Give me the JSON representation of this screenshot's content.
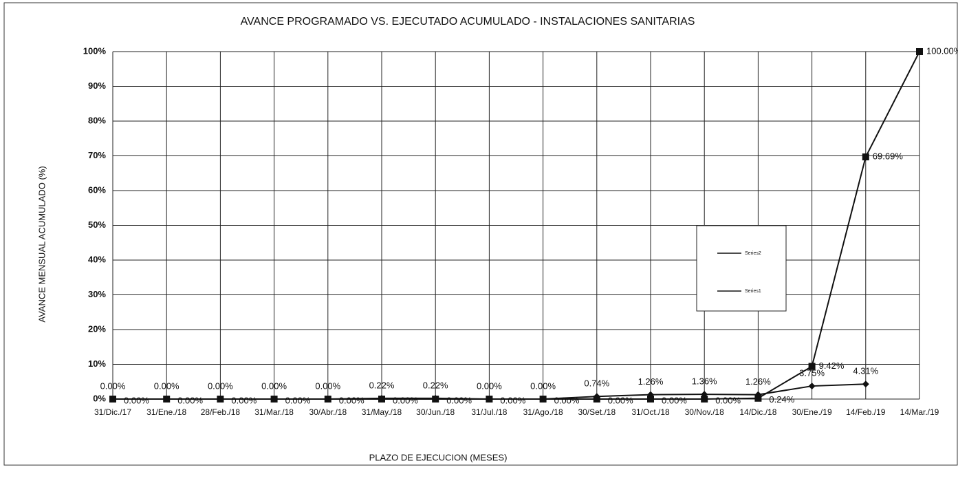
{
  "chart_data": {
    "type": "line",
    "title": "AVANCE PROGRAMADO VS. EJECUTADO ACUMULADO - INSTALACIONES SANITARIAS",
    "x_label": "PLAZO DE EJECUCION  (MESES)",
    "y_label": "AVANCE MENSUAL ACUMULADO (%)",
    "categories": [
      "31/Dic./17",
      "31/Ene./18",
      "28/Feb./18",
      "31/Mar./18",
      "30/Abr./18",
      "31/May./18",
      "30/Jun./18",
      "31/Jul./18",
      "31/Ago./18",
      "30/Set./18",
      "31/Oct./18",
      "30/Nov./18",
      "14/Dic./18",
      "30/Ene./19",
      "14/Feb./19",
      "14/Mar./19"
    ],
    "series": [
      {
        "name": "Series2",
        "color": "#111111",
        "marker": "diamond",
        "values": [
          0,
          0,
          0,
          0,
          0,
          0.22,
          0.22,
          0,
          0,
          0.74,
          1.26,
          1.36,
          1.26,
          3.75,
          4.31,
          null
        ],
        "value_labels": [
          "0.00%",
          "0.00%",
          "0.00%",
          "0.00%",
          "0.00%",
          "0.22%",
          "0.22%",
          "0.00%",
          "0.00%",
          "0.74%",
          "1.26%",
          "1.36%",
          "1.26%",
          "3.75%",
          "4.31%",
          null
        ]
      },
      {
        "name": "Series1",
        "color": "#111111",
        "marker": "square",
        "values": [
          0,
          0,
          0,
          0,
          0,
          0,
          0,
          0,
          0,
          0,
          0,
          0,
          0.24,
          9.42,
          69.69,
          100
        ],
        "value_labels": [
          "0.00%",
          "0.00%",
          "0.00%",
          "0.00%",
          "0.00%",
          "0.00%",
          "0.00%",
          "0.00%",
          "0.00%",
          "0.00%",
          "0.00%",
          "0.00%",
          "0.24%",
          "9.42%",
          "69.69%",
          "100.00%"
        ]
      }
    ],
    "ylim": [
      0,
      100
    ],
    "yticks": [
      {
        "value": 0,
        "label": "0%"
      },
      {
        "value": 10,
        "label": "10%"
      },
      {
        "value": 20,
        "label": "20%"
      },
      {
        "value": 30,
        "label": "30%"
      },
      {
        "value": 40,
        "label": "40%"
      },
      {
        "value": 50,
        "label": "50%"
      },
      {
        "value": 60,
        "label": "60%"
      },
      {
        "value": 70,
        "label": "70%"
      },
      {
        "value": 80,
        "label": "80%"
      },
      {
        "value": 90,
        "label": "90%"
      },
      {
        "value": 100,
        "label": "100%"
      }
    ],
    "grid": true,
    "legend": "right"
  }
}
